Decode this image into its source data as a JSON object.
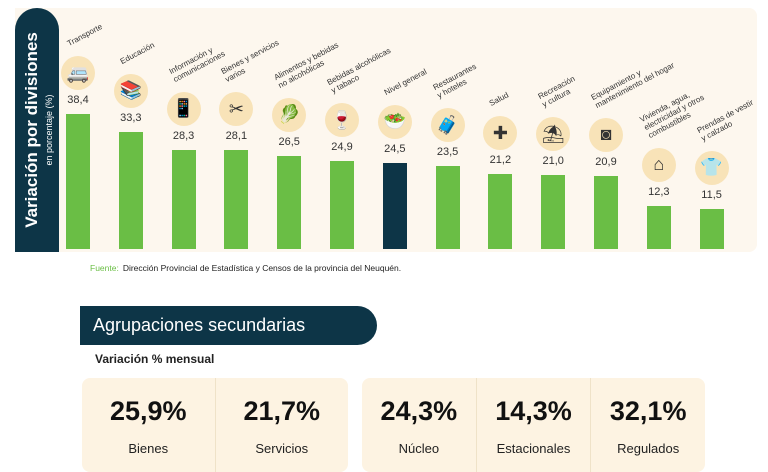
{
  "chart_data": {
    "type": "bar",
    "title": "Variación por divisiones",
    "subtitle": "en porcentaje (%)",
    "categories": [
      "Transporte",
      "Educación",
      "Información y\ncomunicaciones",
      "Bienes y servicios\nvarios",
      "Alimentos y bebidas\nno alcohólicas",
      "Bebidas alcohólicas\ny tabaco",
      "Nivel general",
      "Restaurantes\ny hoteles",
      "Salud",
      "Recreación\ny cultura",
      "Equipamiento y\nmantenimiento del hogar",
      "Vivienda, agua,\nelectricidad y otros\ncombustibles",
      "Prendas de vestir\ny calzado"
    ],
    "values": [
      38.4,
      33.3,
      28.3,
      28.1,
      26.5,
      24.9,
      24.5,
      23.5,
      21.2,
      21.0,
      20.9,
      12.3,
      11.5
    ],
    "value_labels": [
      "38,4",
      "33,3",
      "28,3",
      "28,1",
      "26,5",
      "24,9",
      "24,5",
      "23,5",
      "21,2",
      "21,0",
      "20,9",
      "12,3",
      "11,5"
    ],
    "icons": [
      "car-icon",
      "books-icon",
      "phone-icon",
      "scissors-card-icon",
      "grocery-icon",
      "wine-icon",
      "basket-icon",
      "luggage-icon",
      "health-shield-icon",
      "beach-umbrella-icon",
      "washing-machine-icon",
      "house-energy-icon",
      "clothes-icon"
    ],
    "highlight_index": 6,
    "colors": {
      "bar": "#6abe45",
      "highlight": "#0d3547",
      "icon_circle": "#f8e3b8"
    },
    "ylim": [
      0,
      40
    ],
    "grid": false
  },
  "source": {
    "label": "Fuente:",
    "text": "Dirección Provincial de Estadística y Censos de la provincia del Neuquén."
  },
  "secondary": {
    "title": "Agrupaciones secundarias",
    "subtitle": "Variación % mensual",
    "group1": [
      {
        "value": "25,9%",
        "label": "Bienes"
      },
      {
        "value": "21,7%",
        "label": "Servicios"
      }
    ],
    "group2": [
      {
        "value": "24,3%",
        "label": "Núcleo"
      },
      {
        "value": "14,3%",
        "label": "Estacionales"
      },
      {
        "value": "32,1%",
        "label": "Regulados"
      }
    ]
  }
}
